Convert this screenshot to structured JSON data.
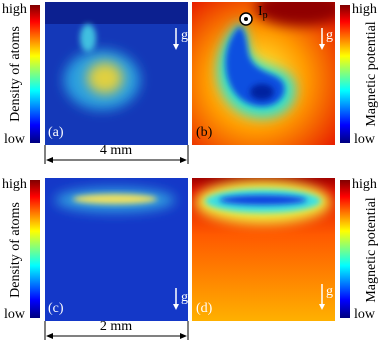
{
  "rows": [
    {
      "colorbar_left": {
        "high": "high",
        "low": "low",
        "label": "Density of atoms"
      },
      "panels": [
        {
          "label": "(a)",
          "gravity": "g"
        },
        {
          "label": "(b)",
          "gravity": "g",
          "current": "I",
          "current_sub": "p"
        }
      ],
      "colorbar_right": {
        "high": "high",
        "low": "low",
        "label": "Magnetic potential"
      },
      "scale": "4 mm"
    },
    {
      "colorbar_left": {
        "high": "high",
        "low": "low",
        "label": "Density of atoms"
      },
      "panels": [
        {
          "label": "(c)",
          "gravity": "g"
        },
        {
          "label": "(d)",
          "gravity": "g"
        }
      ],
      "colorbar_right": {
        "high": "high",
        "low": "low",
        "label": "Magnetic potential"
      },
      "scale": "2 mm"
    }
  ]
}
